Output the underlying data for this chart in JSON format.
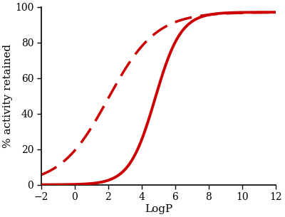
{
  "xlim": [
    -2,
    12
  ],
  "ylim": [
    0,
    100
  ],
  "xticks": [
    -2,
    0,
    2,
    4,
    6,
    8,
    10,
    12
  ],
  "yticks": [
    0,
    20,
    40,
    60,
    80,
    100
  ],
  "xlabel": "LogP",
  "ylabel": "% activity retained",
  "color": "#cc0000",
  "solid_midpoint": 4.8,
  "solid_steepness": 1.3,
  "solid_max": 97,
  "dashed_midpoint": 2.0,
  "dashed_steepness": 0.7,
  "dashed_max": 97,
  "linewidth_solid": 2.8,
  "linewidth_dashed": 2.5,
  "background_color": "#ffffff",
  "figsize": [
    4.0,
    3.05
  ],
  "dpi": 100
}
